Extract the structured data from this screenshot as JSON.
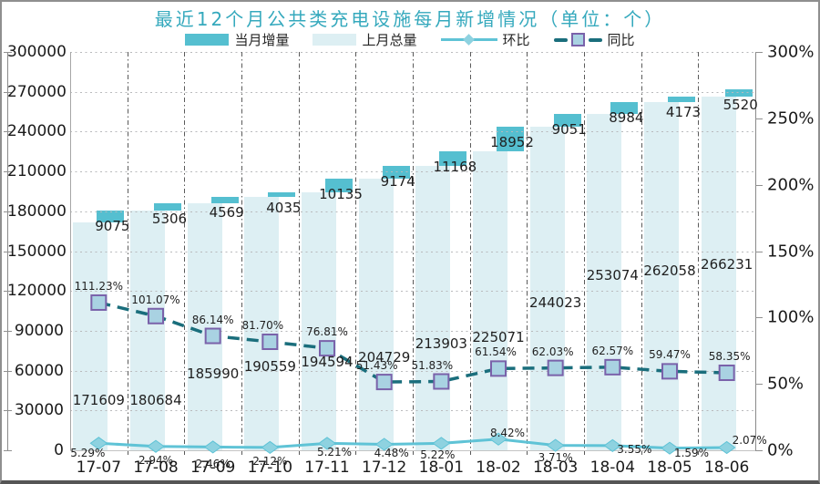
{
  "title": "最近12个月公共类充电设施每月新增情况（单位：个）",
  "legend": {
    "items": [
      {
        "label": "当月增量"
      },
      {
        "label": "上月总量"
      },
      {
        "label": "环比"
      },
      {
        "label": "同比"
      }
    ]
  },
  "colors": {
    "title_text": "#35a9bd",
    "increment_bar": "#55bfd0",
    "total_bar": "#ddeff3",
    "mom_line": "#5fc3d6",
    "mom_marker": "#8ed2e0",
    "yoy_line": "#1a6e7c",
    "yoy_marker_fill": "#a9d2e2",
    "yoy_marker_border": "#7a62aa"
  },
  "chart_data": {
    "type": "bar",
    "subtype": "stacked-bar-with-two-percent-lines",
    "title": "最近12个月公共类充电设施每月新增情况（单位：个）",
    "categories": [
      "17-07",
      "17-08",
      "17-09",
      "17-10",
      "17-11",
      "17-12",
      "18-01",
      "18-02",
      "18-03",
      "18-04",
      "18-05",
      "18-06"
    ],
    "series": [
      {
        "name": "当月增量",
        "type": "bar",
        "stack_role": "top",
        "axis": "left",
        "values": [
          9075,
          5306,
          4569,
          4035,
          10135,
          9174,
          11168,
          18952,
          9051,
          8984,
          4173,
          5520
        ]
      },
      {
        "name": "上月总量",
        "type": "bar",
        "stack_role": "base",
        "axis": "left",
        "values": [
          171609,
          180684,
          185990,
          190559,
          194594,
          204729,
          213903,
          225071,
          244023,
          253074,
          262058,
          266231
        ]
      },
      {
        "name": "环比",
        "type": "line",
        "axis": "right",
        "unit": "%",
        "values": [
          5.29,
          2.94,
          2.46,
          2.12,
          5.21,
          4.48,
          5.22,
          8.42,
          3.71,
          3.55,
          1.59,
          2.07
        ]
      },
      {
        "name": "同比",
        "type": "line-dashed",
        "axis": "right",
        "unit": "%",
        "values": [
          111.23,
          101.07,
          86.14,
          81.7,
          76.81,
          51.43,
          51.83,
          61.54,
          62.03,
          62.57,
          59.47,
          58.35
        ]
      }
    ],
    "left_axis": {
      "min": 0,
      "max": 300000,
      "step": 30000,
      "tick_labels": [
        "0",
        "30000",
        "60000",
        "90000",
        "120000",
        "150000",
        "180000",
        "210000",
        "240000",
        "270000",
        "300000"
      ]
    },
    "right_axis": {
      "min": 0,
      "max": 300,
      "step": 50,
      "tick_labels": [
        "0%",
        "50%",
        "100%",
        "150%",
        "200%",
        "250%",
        "300%"
      ]
    },
    "grid": {
      "horizontal": "dotted",
      "vertical": "dash-dot"
    },
    "legend_position": "top"
  }
}
